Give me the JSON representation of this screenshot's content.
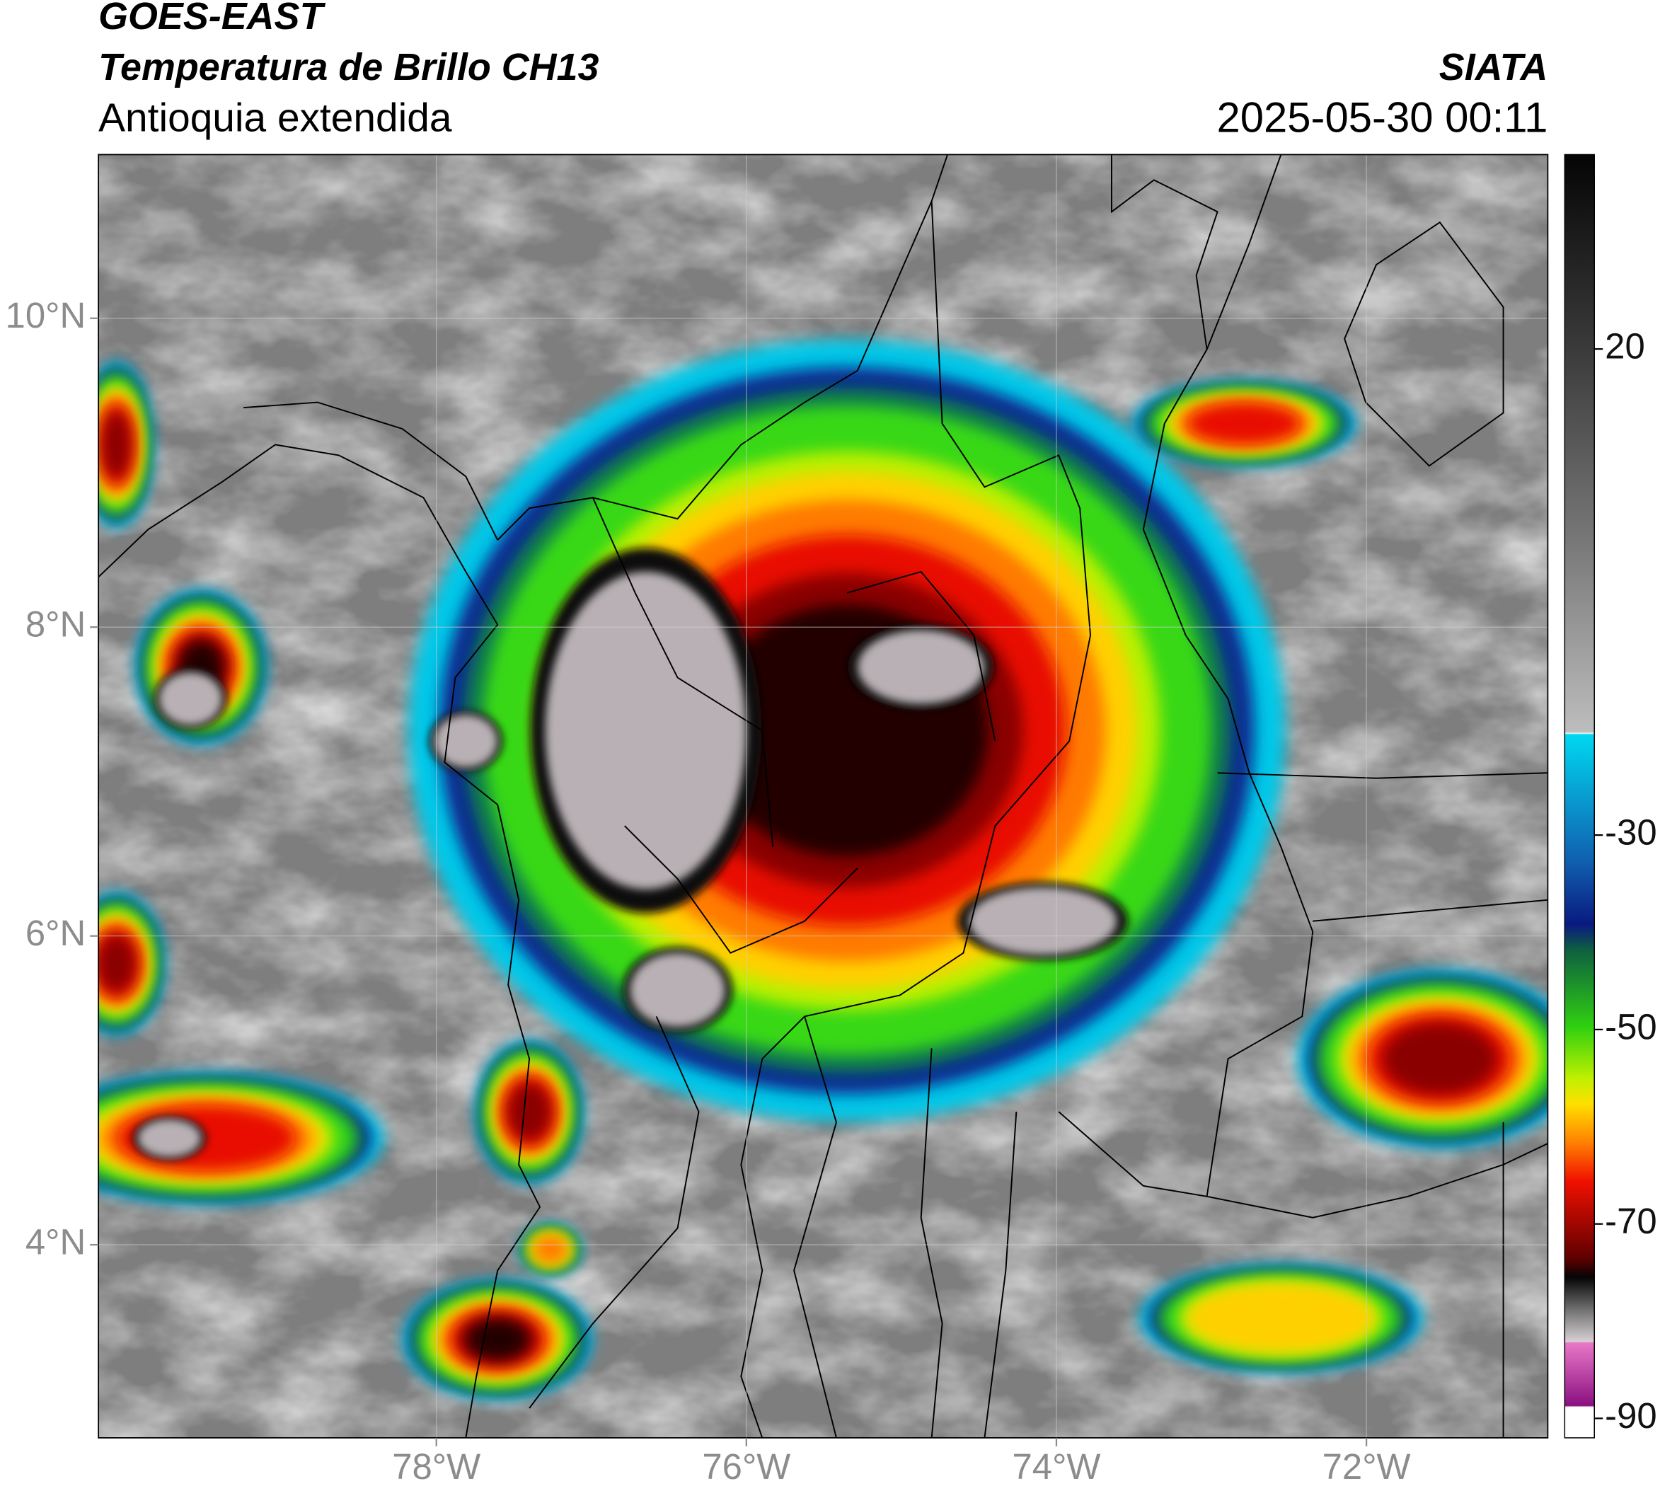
{
  "header": {
    "title": "GOES-EAST",
    "subtitle": "Temperatura de Brillo CH13",
    "region": "Antioquia extendida",
    "source": "SIATA",
    "datetime": "2025-05-30 00:11"
  },
  "map": {
    "xlim": [
      -80.18,
      -70.83
    ],
    "ylim": [
      2.75,
      11.06
    ],
    "xticks": [
      {
        "value": -78,
        "label": "78°W"
      },
      {
        "value": -76,
        "label": "76°W"
      },
      {
        "value": -74,
        "label": "74°W"
      },
      {
        "value": -72,
        "label": "72°W"
      }
    ],
    "yticks": [
      {
        "value": 10,
        "label": "10°N"
      },
      {
        "value": 8,
        "label": "8°N"
      },
      {
        "value": 6,
        "label": "6°N"
      },
      {
        "value": 4,
        "label": "4°N"
      }
    ],
    "grid": true
  },
  "colorbar": {
    "lim": [
      -92,
      40
    ],
    "ticks": [
      20,
      -30,
      -50,
      -70,
      -90
    ]
  }
}
